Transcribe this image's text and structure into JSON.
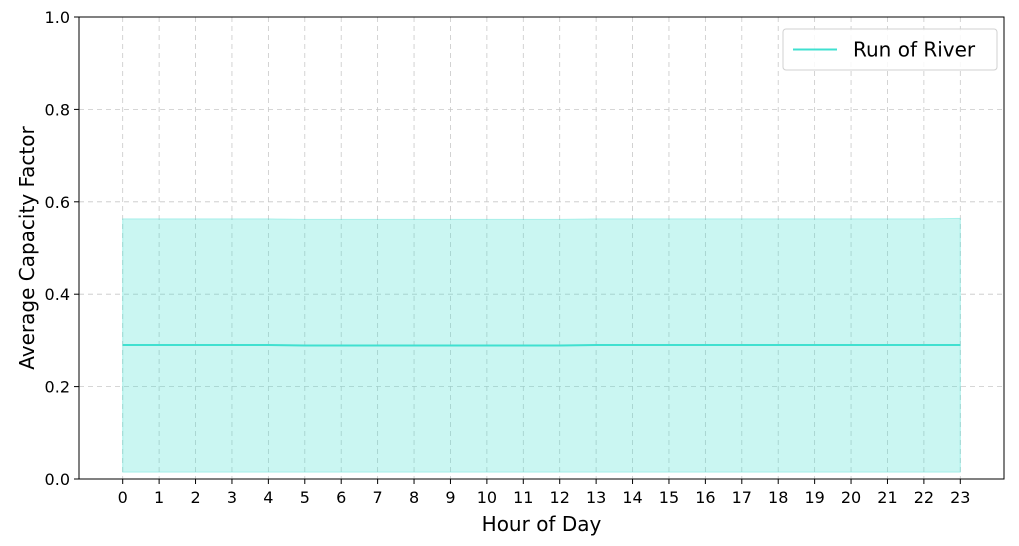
{
  "chart_data": {
    "type": "area",
    "xlabel": "Hour of Day",
    "ylabel": "Average Capacity Factor",
    "x": [
      0,
      1,
      2,
      3,
      4,
      5,
      6,
      7,
      8,
      9,
      10,
      11,
      12,
      13,
      14,
      15,
      16,
      17,
      18,
      19,
      20,
      21,
      22,
      23
    ],
    "xlim": [
      -1.2,
      24.2
    ],
    "ylim": [
      0.0,
      1.0
    ],
    "yticks": [
      0.0,
      0.2,
      0.4,
      0.6,
      0.8,
      1.0
    ],
    "ytick_labels": [
      "0.0",
      "0.2",
      "0.4",
      "0.6",
      "0.8",
      "1.0"
    ],
    "grid": true,
    "legend_position": "top-right",
    "series": [
      {
        "name": "Run of River",
        "color": "#40e0d0",
        "values": [
          0.29,
          0.29,
          0.29,
          0.29,
          0.29,
          0.289,
          0.289,
          0.289,
          0.289,
          0.289,
          0.289,
          0.289,
          0.289,
          0.29,
          0.29,
          0.29,
          0.29,
          0.29,
          0.29,
          0.29,
          0.29,
          0.29,
          0.29,
          0.29
        ],
        "band_lower": [
          0.015,
          0.015,
          0.015,
          0.015,
          0.015,
          0.015,
          0.015,
          0.015,
          0.015,
          0.015,
          0.015,
          0.015,
          0.015,
          0.015,
          0.015,
          0.015,
          0.015,
          0.015,
          0.015,
          0.015,
          0.015,
          0.015,
          0.015,
          0.015
        ],
        "band_upper": [
          0.563,
          0.563,
          0.563,
          0.563,
          0.563,
          0.562,
          0.562,
          0.562,
          0.562,
          0.562,
          0.562,
          0.562,
          0.562,
          0.563,
          0.563,
          0.563,
          0.563,
          0.563,
          0.563,
          0.563,
          0.563,
          0.563,
          0.563,
          0.564
        ]
      }
    ]
  }
}
